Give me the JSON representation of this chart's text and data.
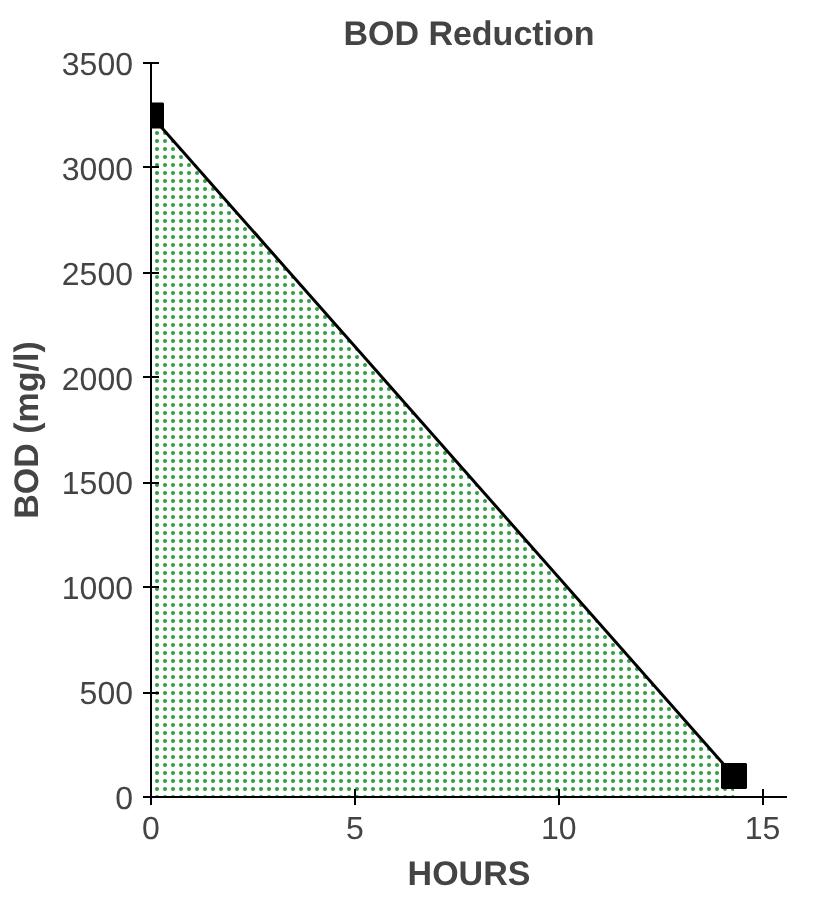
{
  "chart_data": {
    "type": "area",
    "title": "BOD Reduction",
    "xlabel": "HOURS",
    "ylabel": "BOD (mg/l)",
    "x": [
      0,
      14.3
    ],
    "series": [
      {
        "color": "#2e9e3e",
        "values": [
          3250,
          100
        ]
      }
    ],
    "marker": "square",
    "grid": false,
    "xlim": [
      0,
      15.6
    ],
    "ylim": [
      0,
      3500
    ],
    "xticks": [
      0,
      5,
      10,
      15
    ],
    "yticks": [
      0,
      500,
      1000,
      1500,
      2000,
      2500,
      3000,
      3500
    ]
  }
}
